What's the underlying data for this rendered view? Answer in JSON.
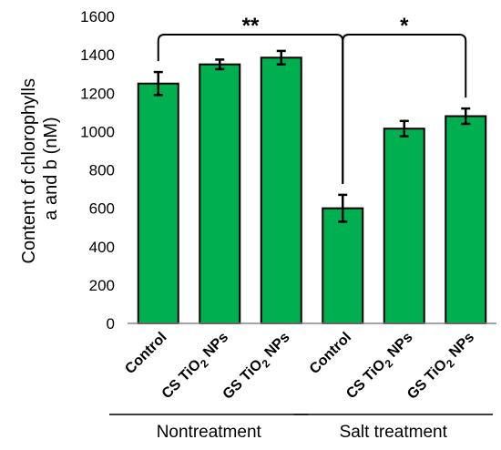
{
  "chart_data": {
    "type": "bar",
    "ylabel": "Content of chlorophylls a and b (nM)",
    "ylim": [
      0,
      1600
    ],
    "yticks": [
      0,
      200,
      400,
      600,
      800,
      1000,
      1200,
      1400,
      1600
    ],
    "categories": [
      {
        "prefix": "Control",
        "sub": "",
        "suffix": ""
      },
      {
        "prefix": "CS TiO",
        "sub": "2",
        "suffix": " NPs"
      },
      {
        "prefix": "GS TiO",
        "sub": "2",
        "suffix": " NPs"
      },
      {
        "prefix": "Control",
        "sub": "",
        "suffix": ""
      },
      {
        "prefix": "CS TiO",
        "sub": "2",
        "suffix": " NPs"
      },
      {
        "prefix": "GS TiO",
        "sub": "2",
        "suffix": " NPs"
      }
    ],
    "values": [
      1250,
      1350,
      1385,
      600,
      1015,
      1080
    ],
    "errors": [
      60,
      25,
      35,
      70,
      40,
      40
    ],
    "groups": [
      {
        "label": "Nontreatment",
        "from": 0,
        "to": 2
      },
      {
        "label": "Salt treatment",
        "from": 3,
        "to": 5
      }
    ],
    "significance": [
      {
        "from": 0,
        "to": 3,
        "label": "**"
      },
      {
        "from": 3,
        "to": 5,
        "label": "*"
      }
    ],
    "grid": false,
    "bar_color": "#00b050"
  }
}
